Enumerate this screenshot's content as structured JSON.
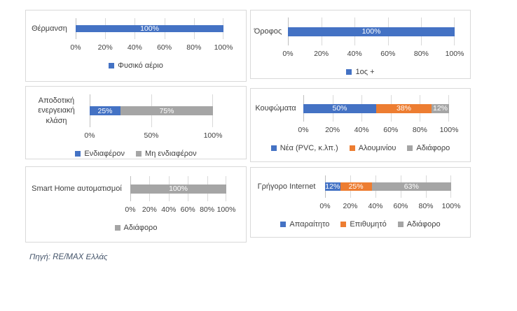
{
  "source_note": "Πηγή: RE/MAX Ελλάς",
  "palette": {
    "blue": "#4472C4",
    "orange": "#ED7D31",
    "gray": "#A5A5A5"
  },
  "chrome": {
    "background": "#FFFFFF",
    "panel_border": "#D9D9D9",
    "gridline": "#D9D9D9",
    "axis_line": "#BFBFBF",
    "text": "#3F3F3F",
    "bar_label_text": "#FFFFFF",
    "source_text": "#44546A"
  },
  "chart_data": [
    {
      "type": "bar",
      "orientation": "horizontal",
      "category": "Θέρμανση",
      "xlim": [
        0,
        100
      ],
      "grid": true,
      "legend_position": "bottom",
      "ticks": [
        "0%",
        "20%",
        "40%",
        "60%",
        "80%",
        "100%"
      ],
      "segments": [
        {
          "name": "Φυσικό αέριο",
          "value": 100,
          "label": "100%",
          "color": "blue"
        }
      ]
    },
    {
      "type": "bar",
      "orientation": "horizontal",
      "category": "Όροφος",
      "xlim": [
        0,
        100
      ],
      "grid": true,
      "legend_position": "bottom",
      "ticks": [
        "0%",
        "20%",
        "40%",
        "60%",
        "80%",
        "100%"
      ],
      "segments": [
        {
          "name": "1ος +",
          "value": 100,
          "label": "100%",
          "color": "blue"
        }
      ]
    },
    {
      "type": "bar",
      "orientation": "horizontal",
      "category": "Αποδοτική ενεργειακή κλάση",
      "xlim": [
        0,
        100
      ],
      "grid": true,
      "legend_position": "bottom",
      "ticks": [
        "0%",
        "50%",
        "100%"
      ],
      "segments": [
        {
          "name": "Ενδιαφέρον",
          "value": 25,
          "label": "25%",
          "color": "blue"
        },
        {
          "name": "Μη ενδιαφέρον",
          "value": 75,
          "label": "75%",
          "color": "gray"
        }
      ]
    },
    {
      "type": "bar",
      "orientation": "horizontal",
      "category": "Κουφώματα",
      "xlim": [
        0,
        100
      ],
      "grid": true,
      "legend_position": "bottom",
      "ticks": [
        "0%",
        "20%",
        "40%",
        "60%",
        "80%",
        "100%"
      ],
      "segments": [
        {
          "name": "Νέα (PVC, κ.λπ.)",
          "value": 50,
          "label": "50%",
          "color": "blue"
        },
        {
          "name": "Αλουμινίου",
          "value": 38,
          "label": "38%",
          "color": "orange"
        },
        {
          "name": "Αδιάφορο",
          "value": 12,
          "label": "12%",
          "color": "gray"
        }
      ]
    },
    {
      "type": "bar",
      "orientation": "horizontal",
      "category": "Smart Home αυτοματισμοί",
      "xlim": [
        0,
        100
      ],
      "grid": true,
      "legend_position": "bottom",
      "ticks": [
        "0%",
        "20%",
        "40%",
        "60%",
        "80%",
        "100%"
      ],
      "segments": [
        {
          "name": "Αδιάφορο",
          "value": 100,
          "label": "100%",
          "color": "gray"
        }
      ]
    },
    {
      "type": "bar",
      "orientation": "horizontal",
      "category": "Γρήγορο Internet",
      "xlim": [
        0,
        100
      ],
      "grid": true,
      "legend_position": "bottom",
      "ticks": [
        "0%",
        "20%",
        "40%",
        "60%",
        "80%",
        "100%"
      ],
      "segments": [
        {
          "name": "Απαραίτητο",
          "value": 12,
          "label": "12%",
          "color": "blue"
        },
        {
          "name": "Επιθυμητό",
          "value": 25,
          "label": "25%",
          "color": "orange"
        },
        {
          "name": "Αδιάφορο",
          "value": 63,
          "label": "63%",
          "color": "gray"
        }
      ]
    }
  ]
}
